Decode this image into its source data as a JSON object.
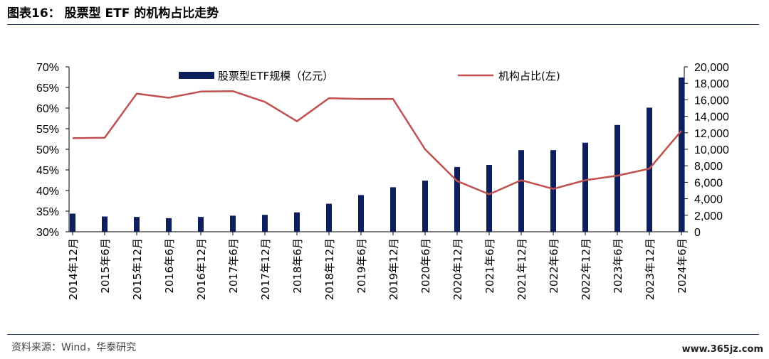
{
  "header": {
    "title": "图表16：  股票型 ETF 的机构占比走势"
  },
  "footer": {
    "source": "资料来源：Wind，华泰研究",
    "watermark": "www.365jz.com"
  },
  "chart_data": {
    "type": "bar+line",
    "categories": [
      "2014年12月",
      "2015年6月",
      "2015年12月",
      "2016年6月",
      "2016年12月",
      "2017年6月",
      "2017年12月",
      "2018年6月",
      "2018年12月",
      "2019年6月",
      "2019年12月",
      "2020年6月",
      "2020年12月",
      "2021年6月",
      "2021年12月",
      "2022年6月",
      "2022年12月",
      "2023年6月",
      "2023年12月",
      "2024年6月"
    ],
    "series": [
      {
        "name": "股票型ETF规模（亿元）",
        "kind": "bar",
        "axis": "right",
        "color": "#0d1f5c",
        "values": [
          2200,
          1850,
          1800,
          1650,
          1800,
          1950,
          2050,
          2350,
          3400,
          4450,
          5400,
          6200,
          7850,
          8100,
          9900,
          9900,
          10800,
          12950,
          15050,
          18700
        ]
      },
      {
        "name": "机构占比(左)",
        "kind": "line",
        "axis": "left",
        "color": "#c0504d",
        "values": [
          52.7,
          52.8,
          63.5,
          62.5,
          64.0,
          64.1,
          61.5,
          56.8,
          62.4,
          62.2,
          62.2,
          50.0,
          42.3,
          39.1,
          42.5,
          40.4,
          42.5,
          43.6,
          45.3,
          54.5
        ]
      }
    ],
    "yaxis_left": {
      "min": 30,
      "max": 70,
      "step": 5,
      "ticks": [
        "30%",
        "35%",
        "40%",
        "45%",
        "50%",
        "55%",
        "60%",
        "65%",
        "70%"
      ]
    },
    "yaxis_right": {
      "min": 0,
      "max": 20000,
      "step": 2000,
      "ticks": [
        "0",
        "2,000",
        "4,000",
        "6,000",
        "8,000",
        "10,000",
        "12,000",
        "14,000",
        "16,000",
        "18,000",
        "20,000"
      ]
    },
    "grid": false,
    "legend_placement": "top"
  }
}
